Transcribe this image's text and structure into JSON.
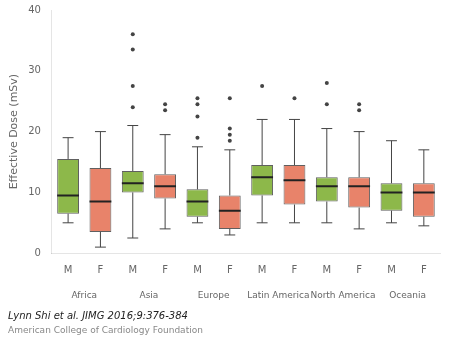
{
  "chart_data": {
    "type": "box",
    "categories": [
      "Africa",
      "Asia",
      "Europe",
      "Latin America",
      "North America",
      "Oceania"
    ],
    "series": [
      {
        "name": "M",
        "color": "#8db84a",
        "boxes": [
          {
            "q1": 6.5,
            "median": 9.5,
            "q3": 15.5,
            "whislo": 5.0,
            "whishi": 19.0,
            "fliers": []
          },
          {
            "q1": 10.0,
            "median": 11.5,
            "q3": 13.5,
            "whislo": 2.5,
            "whishi": 21.0,
            "fliers": [
              24.0,
              27.5,
              33.5,
              36.0
            ]
          },
          {
            "q1": 6.0,
            "median": 8.5,
            "q3": 10.5,
            "whislo": 5.0,
            "whishi": 17.5,
            "fliers": [
              19.0,
              22.5,
              24.5,
              25.5
            ]
          },
          {
            "q1": 9.5,
            "median": 12.5,
            "q3": 14.5,
            "whislo": 5.0,
            "whishi": 22.0,
            "fliers": [
              27.5
            ]
          },
          {
            "q1": 8.5,
            "median": 11.0,
            "q3": 12.5,
            "whislo": 5.0,
            "whishi": 20.5,
            "fliers": [
              24.5,
              28.0
            ]
          },
          {
            "q1": 7.0,
            "median": 10.0,
            "q3": 11.5,
            "whislo": 5.0,
            "whishi": 18.5,
            "fliers": []
          }
        ]
      },
      {
        "name": "F",
        "color": "#e8836a",
        "boxes": [
          {
            "q1": 3.5,
            "median": 8.5,
            "q3": 14.0,
            "whislo": 1.0,
            "whishi": 20.0,
            "fliers": []
          },
          {
            "q1": 9.0,
            "median": 11.0,
            "q3": 13.0,
            "whislo": 4.0,
            "whishi": 19.5,
            "fliers": [
              23.5,
              24.5
            ]
          },
          {
            "q1": 4.0,
            "median": 7.0,
            "q3": 9.5,
            "whislo": 3.0,
            "whishi": 17.0,
            "fliers": [
              18.5,
              19.5,
              20.5,
              25.5
            ]
          },
          {
            "q1": 8.0,
            "median": 12.0,
            "q3": 14.5,
            "whislo": 5.0,
            "whishi": 22.0,
            "fliers": [
              25.5
            ]
          },
          {
            "q1": 7.5,
            "median": 11.0,
            "q3": 12.5,
            "whislo": 4.0,
            "whishi": 20.0,
            "fliers": [
              23.5,
              24.5
            ]
          },
          {
            "q1": 6.0,
            "median": 10.0,
            "q3": 11.5,
            "whislo": 4.5,
            "whishi": 17.0,
            "fliers": []
          }
        ]
      }
    ],
    "ylabel": "Effective Dose (mSv)",
    "ylim": [
      0,
      40
    ],
    "yticks": [
      0,
      10,
      20,
      30,
      40
    ],
    "grid": false,
    "annotations": [
      "Lynn Shi et al. JIMG 2016;9:376-384",
      "American College of Cardiology Foundation"
    ]
  }
}
